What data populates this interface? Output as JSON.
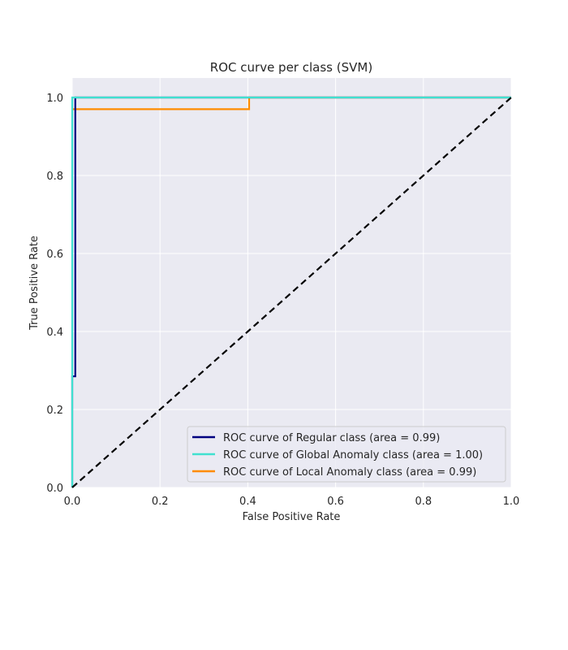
{
  "chart_data": {
    "type": "line",
    "title": "ROC curve per class (SVM)",
    "xlabel": "False Positive Rate",
    "ylabel": "True Positive Rate",
    "xlim": [
      0.0,
      1.0
    ],
    "ylim": [
      0.0,
      1.05
    ],
    "x_ticks": [
      0.0,
      0.2,
      0.4,
      0.6,
      0.8,
      1.0
    ],
    "x_tick_labels": [
      "0.0",
      "0.2",
      "0.4",
      "0.6",
      "0.8",
      "1.0"
    ],
    "y_ticks": [
      0.0,
      0.2,
      0.4,
      0.6,
      0.8,
      1.0
    ],
    "y_tick_labels": [
      "0.0",
      "0.2",
      "0.4",
      "0.6",
      "0.8",
      "1.0"
    ],
    "grid": true,
    "legend_position": "lower-right",
    "background_color": "#eaeaf2",
    "series": [
      {
        "name": "ROC curve of Regular class (area = 0.99)",
        "color": "#000080",
        "x": [
          0.0,
          0.0,
          0.007,
          0.007,
          0.007,
          1.0
        ],
        "y": [
          0.0,
          0.285,
          0.285,
          0.99,
          1.0,
          1.0
        ]
      },
      {
        "name": "ROC curve of Global Anomaly class (area = 1.00)",
        "color": "#40e0d0",
        "x": [
          0.0,
          0.0,
          0.0,
          1.0
        ],
        "y": [
          0.0,
          0.27,
          1.0,
          1.0
        ]
      },
      {
        "name": "ROC curve of Local Anomaly class (area = 0.99)",
        "color": "#ff8c00",
        "x": [
          0.0,
          0.403,
          0.403,
          1.0
        ],
        "y": [
          0.97,
          0.97,
          1.0,
          1.0
        ]
      }
    ],
    "reference_line": {
      "x": [
        0.0,
        1.0
      ],
      "y": [
        0.0,
        1.0
      ],
      "color": "#000000",
      "style": "dashed"
    }
  }
}
